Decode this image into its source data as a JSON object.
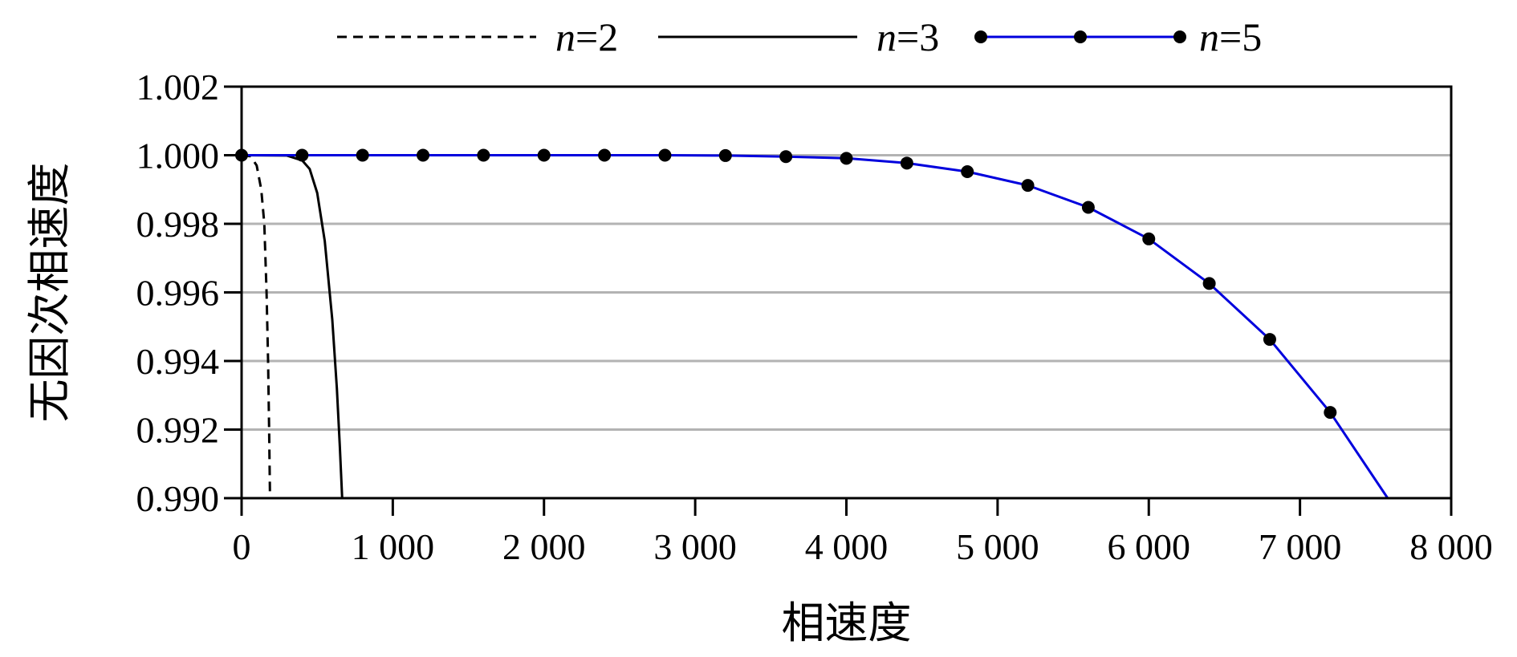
{
  "chart_data": {
    "type": "line",
    "title": "",
    "xlabel": "相速度",
    "ylabel": "无因次相速度",
    "xlim": [
      0,
      8000
    ],
    "ylim": [
      0.99,
      1.002
    ],
    "x_ticks": [
      0,
      1000,
      2000,
      3000,
      4000,
      5000,
      6000,
      7000,
      8000
    ],
    "x_tick_labels": [
      "0",
      "1 000",
      "2 000",
      "3 000",
      "4 000",
      "5 000",
      "6 000",
      "7 000",
      "8 000"
    ],
    "y_ticks": [
      0.99,
      0.992,
      0.994,
      0.996,
      0.998,
      1.0,
      1.002
    ],
    "y_tick_labels": [
      "0.990",
      "0.992",
      "0.994",
      "0.996",
      "0.998",
      "1.000",
      "1.002"
    ],
    "grid": "horizontal",
    "legend_position": "top",
    "series": [
      {
        "name": "n=2",
        "legend_var": "n",
        "legend_value": "=2",
        "style": "dashed",
        "color": "#000000",
        "x": [
          0,
          60,
          100,
          130,
          150,
          165,
          175,
          182,
          188
        ],
        "y": [
          1.0,
          0.99997,
          0.9997,
          0.999,
          0.998,
          0.996,
          0.994,
          0.992,
          0.99
        ]
      },
      {
        "name": "n=3",
        "legend_var": "n",
        "legend_value": "=3",
        "style": "solid",
        "color": "#000000",
        "x": [
          0,
          300,
          400,
          450,
          500,
          550,
          600,
          630,
          650,
          665
        ],
        "y": [
          1.0,
          0.99999,
          0.99985,
          0.9996,
          0.9989,
          0.9975,
          0.9952,
          0.9932,
          0.9915,
          0.99
        ]
      },
      {
        "name": "n=5",
        "legend_var": "n",
        "legend_value": "=5",
        "style": "solid-markers",
        "color": "#0000dd",
        "marker_color": "#000000",
        "x": [
          0,
          400,
          800,
          1200,
          1600,
          2000,
          2400,
          2800,
          3200,
          3600,
          4000,
          4400,
          4800,
          5200,
          5600,
          6000,
          6400,
          6800,
          7200,
          7580
        ],
        "y": [
          1.0,
          1.0,
          1.0,
          1.0,
          1.0,
          1.0,
          1.0,
          1.0,
          0.99999,
          0.99996,
          0.99991,
          0.99977,
          0.99952,
          0.99912,
          0.99848,
          0.99756,
          0.99626,
          0.99463,
          0.9925,
          0.99
        ]
      }
    ]
  }
}
